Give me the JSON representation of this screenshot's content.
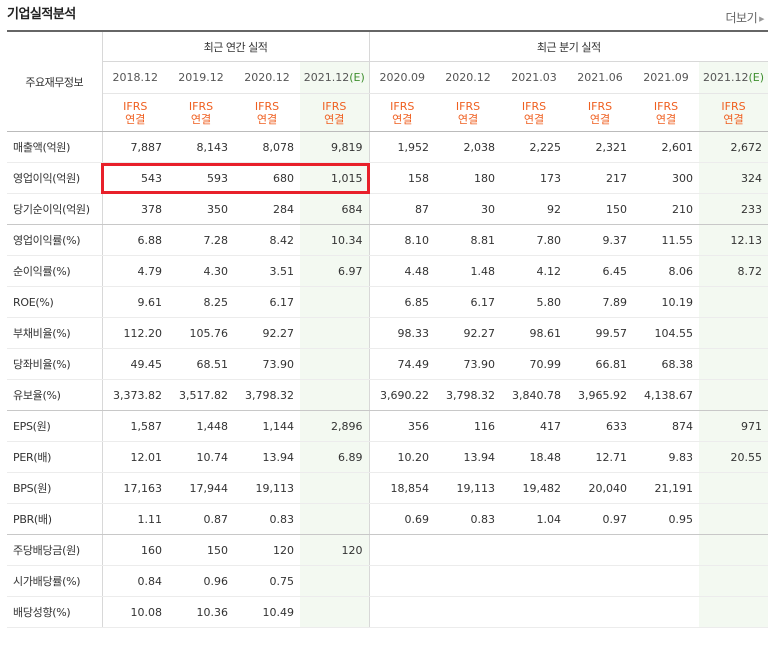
{
  "header": {
    "title": "기업실적분석",
    "more_label": "더보기"
  },
  "table": {
    "label_header": "주요재무정보",
    "annual_group": "최근 연간 실적",
    "quarter_group": "최근 분기 실적",
    "periods": [
      "2018.12",
      "2019.12",
      "2020.12",
      "2021.12",
      "2020.09",
      "2020.12",
      "2021.03",
      "2021.06",
      "2021.09",
      "2021.12"
    ],
    "estimate_mark": "(E)",
    "ifrs_top": "IFRS",
    "ifrs_bottom": "연결",
    "rows": [
      {
        "label": "매출액(억원)",
        "values": [
          "7,887",
          "8,143",
          "8,078",
          "9,819",
          "1,952",
          "2,038",
          "2,225",
          "2,321",
          "2,601",
          "2,672"
        ]
      },
      {
        "label": "영업이익(억원)",
        "values": [
          "543",
          "593",
          "680",
          "1,015",
          "158",
          "180",
          "173",
          "217",
          "300",
          "324"
        ]
      },
      {
        "label": "당기순이익(억원)",
        "values": [
          "378",
          "350",
          "284",
          "684",
          "87",
          "30",
          "92",
          "150",
          "210",
          "233"
        ]
      },
      {
        "label": "영업이익률(%)",
        "values": [
          "6.88",
          "7.28",
          "8.42",
          "10.34",
          "8.10",
          "8.81",
          "7.80",
          "9.37",
          "11.55",
          "12.13"
        ]
      },
      {
        "label": "순이익률(%)",
        "values": [
          "4.79",
          "4.30",
          "3.51",
          "6.97",
          "4.48",
          "1.48",
          "4.12",
          "6.45",
          "8.06",
          "8.72"
        ]
      },
      {
        "label": "ROE(%)",
        "values": [
          "9.61",
          "8.25",
          "6.17",
          "",
          "6.85",
          "6.17",
          "5.80",
          "7.89",
          "10.19",
          ""
        ]
      },
      {
        "label": "부채비율(%)",
        "values": [
          "112.20",
          "105.76",
          "92.27",
          "",
          "98.33",
          "92.27",
          "98.61",
          "99.57",
          "104.55",
          ""
        ]
      },
      {
        "label": "당좌비율(%)",
        "values": [
          "49.45",
          "68.51",
          "73.90",
          "",
          "74.49",
          "73.90",
          "70.99",
          "66.81",
          "68.38",
          ""
        ]
      },
      {
        "label": "유보율(%)",
        "values": [
          "3,373.82",
          "3,517.82",
          "3,798.32",
          "",
          "3,690.22",
          "3,798.32",
          "3,840.78",
          "3,965.92",
          "4,138.67",
          ""
        ]
      },
      {
        "label": "EPS(원)",
        "values": [
          "1,587",
          "1,448",
          "1,144",
          "2,896",
          "356",
          "116",
          "417",
          "633",
          "874",
          "971"
        ]
      },
      {
        "label": "PER(배)",
        "values": [
          "12.01",
          "10.74",
          "13.94",
          "6.89",
          "10.20",
          "13.94",
          "18.48",
          "12.71",
          "9.83",
          "20.55"
        ]
      },
      {
        "label": "BPS(원)",
        "values": [
          "17,163",
          "17,944",
          "19,113",
          "",
          "18,854",
          "19,113",
          "19,482",
          "20,040",
          "21,191",
          ""
        ]
      },
      {
        "label": "PBR(배)",
        "values": [
          "1.11",
          "0.87",
          "0.83",
          "",
          "0.69",
          "0.83",
          "1.04",
          "0.97",
          "0.95",
          ""
        ]
      },
      {
        "label": "주당배당금(원)",
        "values": [
          "160",
          "150",
          "120",
          "120",
          "",
          "",
          "",
          "",
          "",
          ""
        ]
      },
      {
        "label": "시가배당률(%)",
        "values": [
          "0.84",
          "0.96",
          "0.75",
          "",
          "",
          "",
          "",
          "",
          "",
          ""
        ]
      },
      {
        "label": "배당성향(%)",
        "values": [
          "10.08",
          "10.36",
          "10.49",
          "",
          "",
          "",
          "",
          "",
          "",
          ""
        ]
      }
    ]
  },
  "colors": {
    "ifrs": "#ef5f20",
    "estimate_bg": "#f3f9f1",
    "highlight": "#e8202a"
  }
}
